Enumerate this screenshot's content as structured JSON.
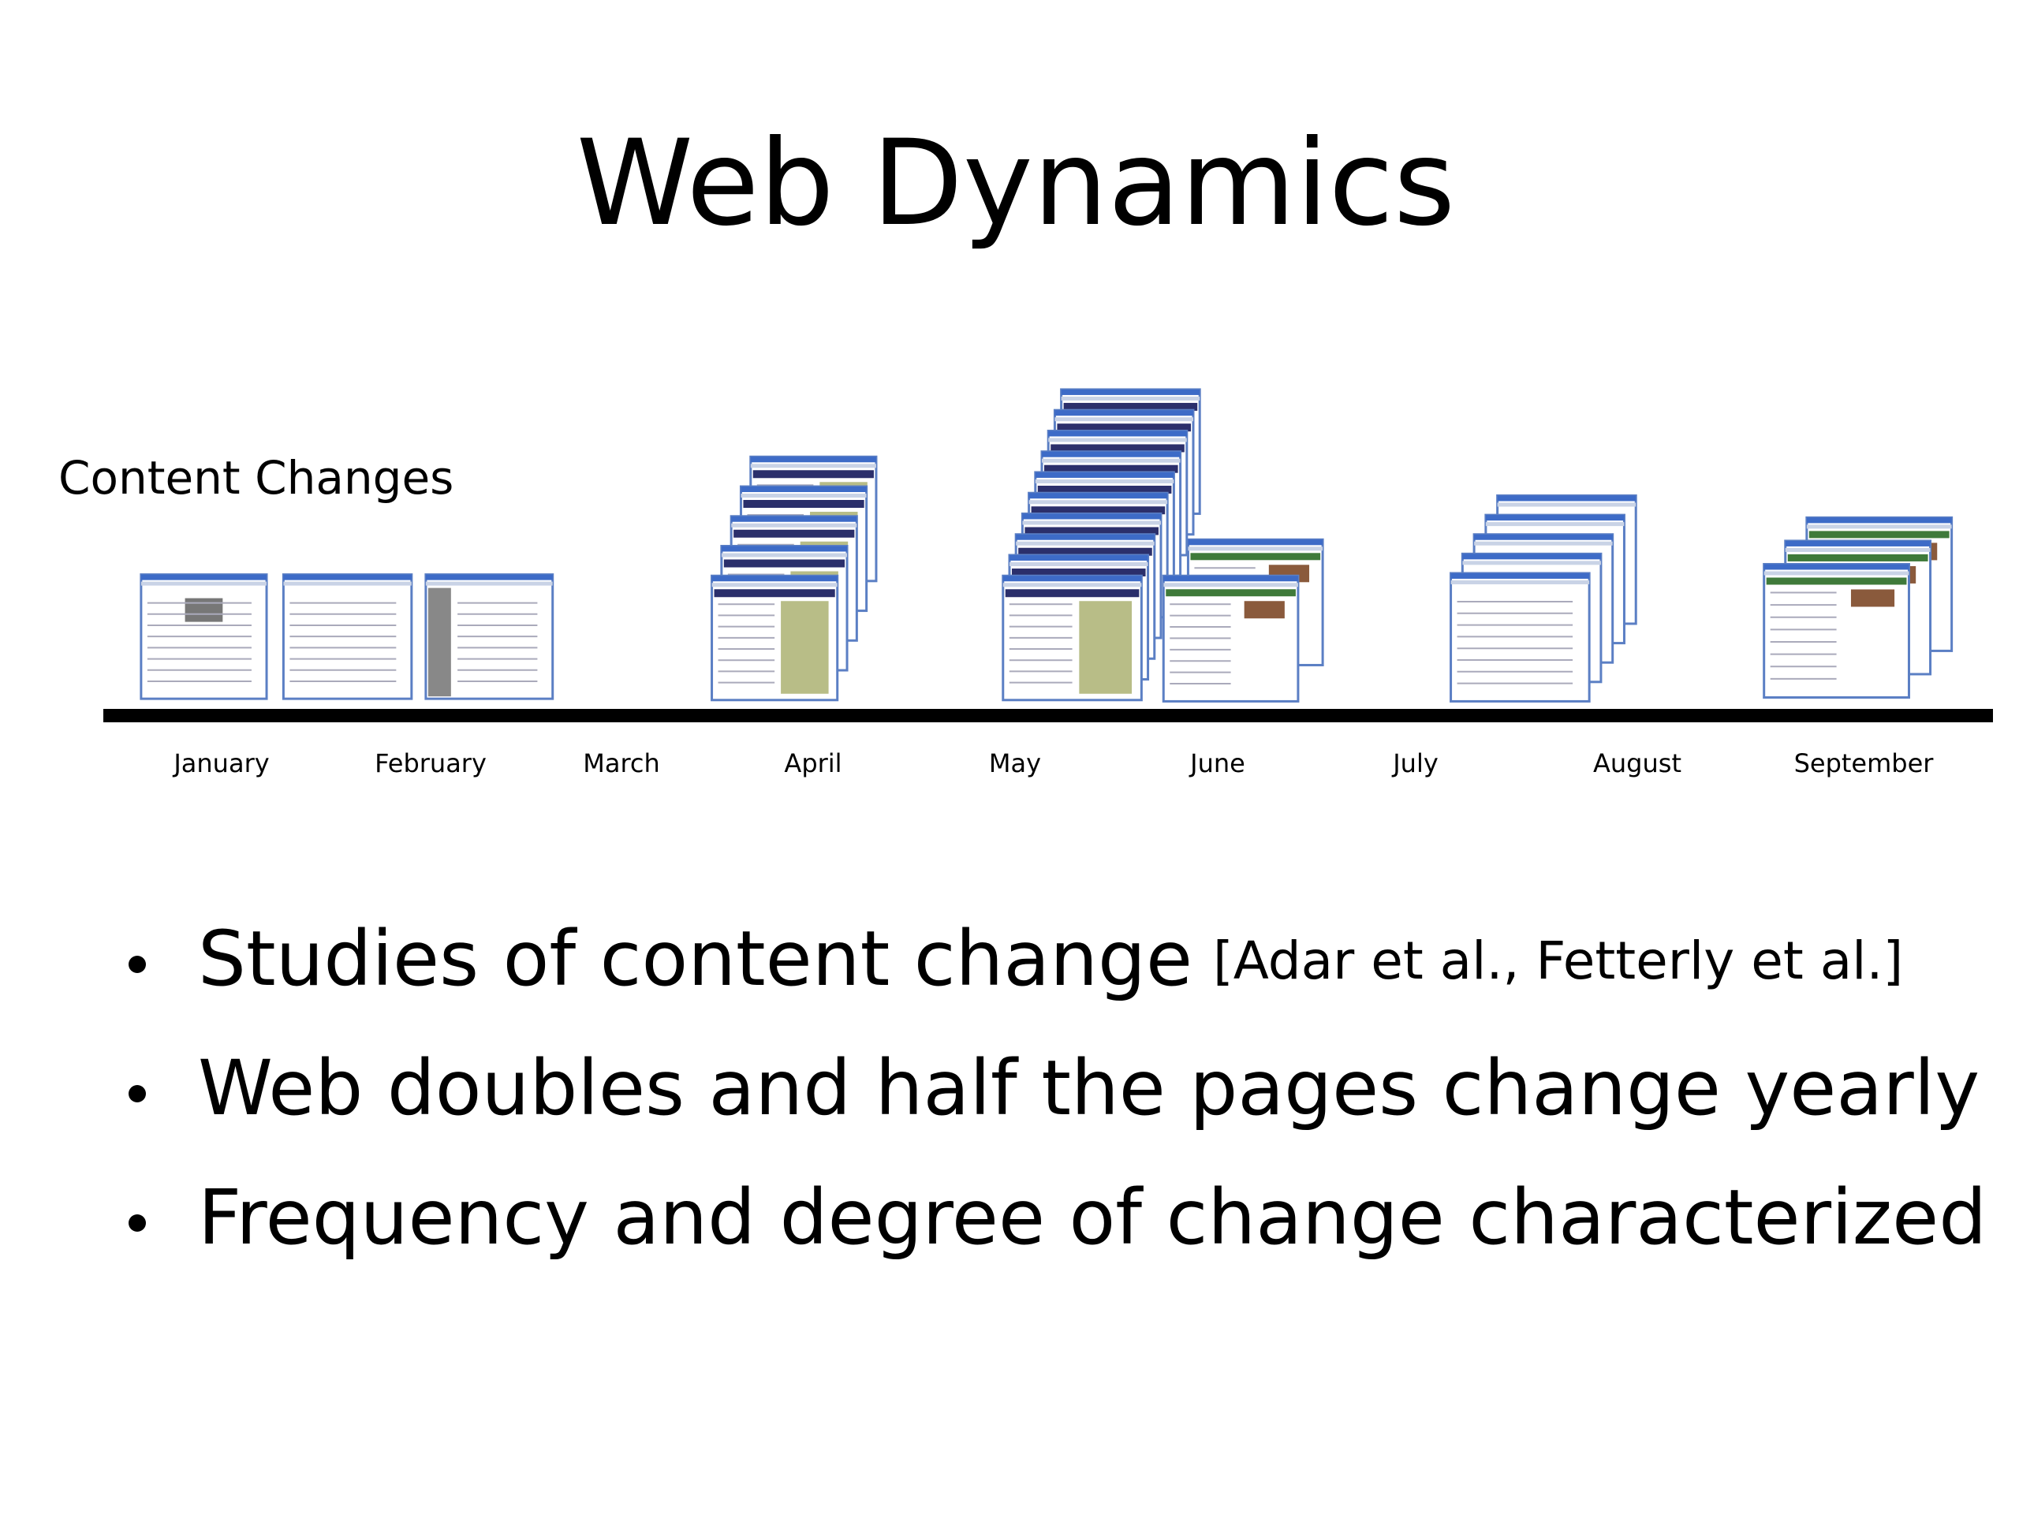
{
  "header": {
    "title": "Web Dynamics"
  },
  "timeline": {
    "label": "Content Changes",
    "months": [
      "January",
      "February",
      "March",
      "April",
      "May",
      "June",
      "July",
      "August",
      "September"
    ]
  },
  "bullets": [
    {
      "text": "Studies of content change",
      "citation": "[Adar et al., Fetterly et al.]"
    },
    {
      "text": "Web doubles and half the pages change yearly"
    },
    {
      "text": "Frequency and degree of change characterized"
    }
  ]
}
